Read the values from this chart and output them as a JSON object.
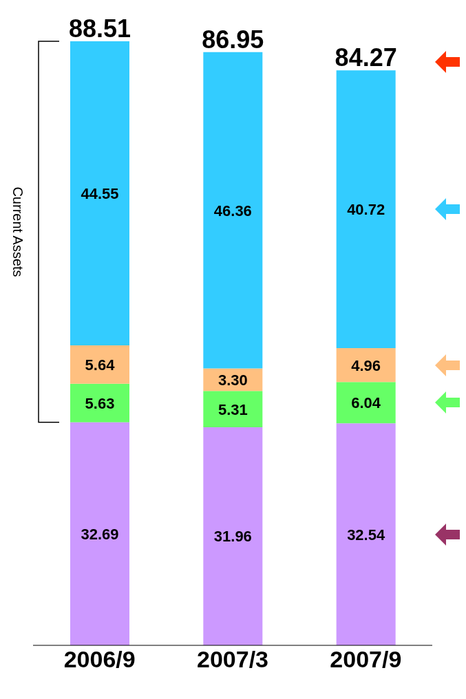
{
  "chart_data": {
    "type": "bar",
    "stacked": true,
    "categories": [
      "2006/9",
      "2007/3",
      "2007/9"
    ],
    "series": [
      {
        "color": "#cc99ff",
        "values": [
          32.69,
          31.96,
          32.54
        ],
        "value_labels": [
          "32.69",
          "31.96",
          "32.54"
        ]
      },
      {
        "color": "#66ff66",
        "values": [
          5.63,
          5.31,
          6.04
        ],
        "value_labels": [
          "5.63",
          "5.31",
          "6.04"
        ]
      },
      {
        "color": "#ffc080",
        "values": [
          5.64,
          3.3,
          4.96
        ],
        "value_labels": [
          "5.64",
          "3.30",
          "4.96"
        ]
      },
      {
        "color": "#33ccff",
        "values": [
          44.55,
          46.36,
          40.72
        ],
        "value_labels": [
          "44.55",
          "46.36",
          "40.72"
        ]
      }
    ],
    "totals": [
      "88.51",
      "86.95",
      "84.27"
    ],
    "annotations": [
      "Current Assets"
    ]
  }
}
